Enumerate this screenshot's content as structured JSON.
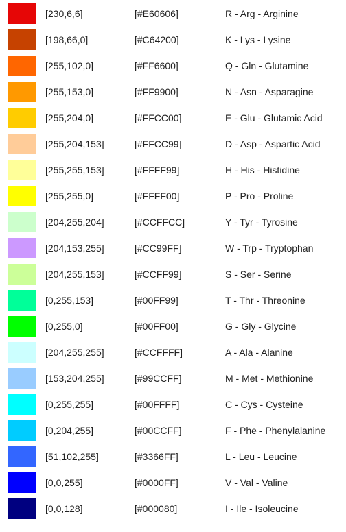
{
  "rows": [
    {
      "color": "#E60606",
      "rgb": "[230,6,6]",
      "hex": "[#E60606]",
      "name": "R - Arg - Arginine"
    },
    {
      "color": "#C64200",
      "rgb": "[198,66,0]",
      "hex": "[#C64200]",
      "name": "K - Lys - Lysine"
    },
    {
      "color": "#FF6600",
      "rgb": "[255,102,0]",
      "hex": "[#FF6600]",
      "name": "Q - Gln - Glutamine"
    },
    {
      "color": "#FF9900",
      "rgb": "[255,153,0]",
      "hex": "[#FF9900]",
      "name": "N - Asn - Asparagine"
    },
    {
      "color": "#FFCC00",
      "rgb": "[255,204,0]",
      "hex": "[#FFCC00]",
      "name": "E - Glu - Glutamic Acid"
    },
    {
      "color": "#FFCC99",
      "rgb": "[255,204,153]",
      "hex": "[#FFCC99]",
      "name": "D - Asp - Aspartic Acid"
    },
    {
      "color": "#FFFF99",
      "rgb": "[255,255,153]",
      "hex": "[#FFFF99]",
      "name": "H - His - Histidine"
    },
    {
      "color": "#FFFF00",
      "rgb": "[255,255,0]",
      "hex": "[#FFFF00]",
      "name": "P - Pro - Proline"
    },
    {
      "color": "#CCFFCC",
      "rgb": "[204,255,204]",
      "hex": "[#CCFFCC]",
      "name": "Y - Tyr - Tyrosine"
    },
    {
      "color": "#CC99FF",
      "rgb": "[204,153,255]",
      "hex": "[#CC99FF]",
      "name": "W - Trp - Tryptophan"
    },
    {
      "color": "#CCFF99",
      "rgb": "[204,255,153]",
      "hex": "[#CCFF99]",
      "name": "S - Ser - Serine"
    },
    {
      "color": "#00FF99",
      "rgb": "[0,255,153]",
      "hex": "[#00FF99]",
      "name": "T - Thr - Threonine"
    },
    {
      "color": "#00FF00",
      "rgb": "[0,255,0]",
      "hex": "[#00FF00]",
      "name": "G - Gly - Glycine"
    },
    {
      "color": "#CCFFFF",
      "rgb": "[204,255,255]",
      "hex": "[#CCFFFF]",
      "name": "A - Ala - Alanine"
    },
    {
      "color": "#99CCFF",
      "rgb": "[153,204,255]",
      "hex": "[#99CCFF]",
      "name": "M - Met - Methionine"
    },
    {
      "color": "#00FFFF",
      "rgb": "[0,255,255]",
      "hex": "[#00FFFF]",
      "name": "C - Cys - Cysteine"
    },
    {
      "color": "#00CCFF",
      "rgb": "[0,204,255]",
      "hex": "[#00CCFF]",
      "name": "F - Phe - Phenylalanine"
    },
    {
      "color": "#3366FF",
      "rgb": "[51,102,255]",
      "hex": "[#3366FF]",
      "name": "L - Leu - Leucine"
    },
    {
      "color": "#0000FF",
      "rgb": "[0,0,255]",
      "hex": "[#0000FF]",
      "name": "V - Val - Valine"
    },
    {
      "color": "#000080",
      "rgb": "[0,0,128]",
      "hex": "[#000080]",
      "name": "I - Ile - Isoleucine"
    }
  ]
}
